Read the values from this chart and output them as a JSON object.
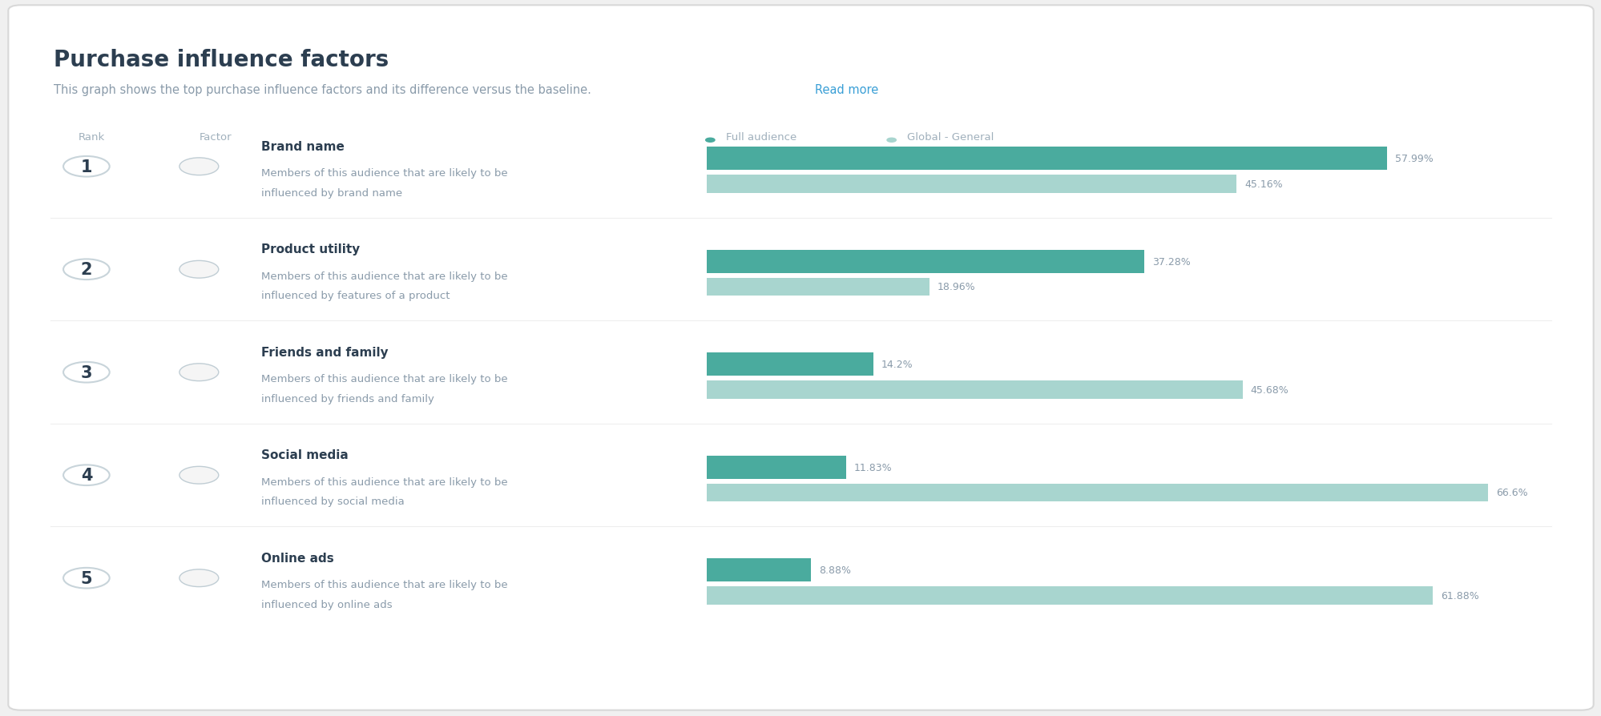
{
  "title": "Purchase influence factors",
  "subtitle_plain": "This graph shows the top purchase influence factors and its difference versus the baseline.",
  "subtitle_link": "Read more",
  "header_rank": "Rank",
  "header_factor": "Factor",
  "legend_full": "Full audience",
  "legend_global": "Global - General",
  "bg_color": "#f0f0f0",
  "card_color": "#ffffff",
  "title_color": "#2c3e50",
  "subtitle_color": "#8a9baa",
  "link_color": "#3a9fd6",
  "header_color": "#a0b0bc",
  "rank_circle_bg": "#ffffff",
  "rank_circle_border": "#c8d4da",
  "rank_text_color": "#2c3e50",
  "factor_title_color": "#2c3e50",
  "factor_desc_color": "#8a9baa",
  "bar_full_color": "#4aab9e",
  "bar_global_color": "#a8d5cf",
  "bar_label_color": "#8a9baa",
  "divider_color": "#eeeeee",
  "rows": [
    {
      "rank": "1",
      "factor_title": "Brand name",
      "factor_desc_line1": "Members of this audience that are likely to be",
      "factor_desc_line2": "influenced by brand name",
      "full_value": 57.99,
      "global_value": 45.16
    },
    {
      "rank": "2",
      "factor_title": "Product utility",
      "factor_desc_line1": "Members of this audience that are likely to be",
      "factor_desc_line2": "influenced by features of a product",
      "full_value": 37.28,
      "global_value": 18.96
    },
    {
      "rank": "3",
      "factor_title": "Friends and family",
      "factor_desc_line1": "Members of this audience that are likely to be",
      "factor_desc_line2": "influenced by friends and family",
      "full_value": 14.2,
      "global_value": 45.68
    },
    {
      "rank": "4",
      "factor_title": "Social media",
      "factor_desc_line1": "Members of this audience that are likely to be",
      "factor_desc_line2": "influenced by social media",
      "full_value": 11.83,
      "global_value": 66.6
    },
    {
      "rank": "5",
      "factor_title": "Online ads",
      "factor_desc_line1": "Members of this audience that are likely to be",
      "factor_desc_line2": "influenced by online ads",
      "full_value": 8.88,
      "global_value": 61.88
    }
  ],
  "max_bar_value": 70,
  "figsize": [
    19.99,
    8.95
  ],
  "dpi": 100
}
